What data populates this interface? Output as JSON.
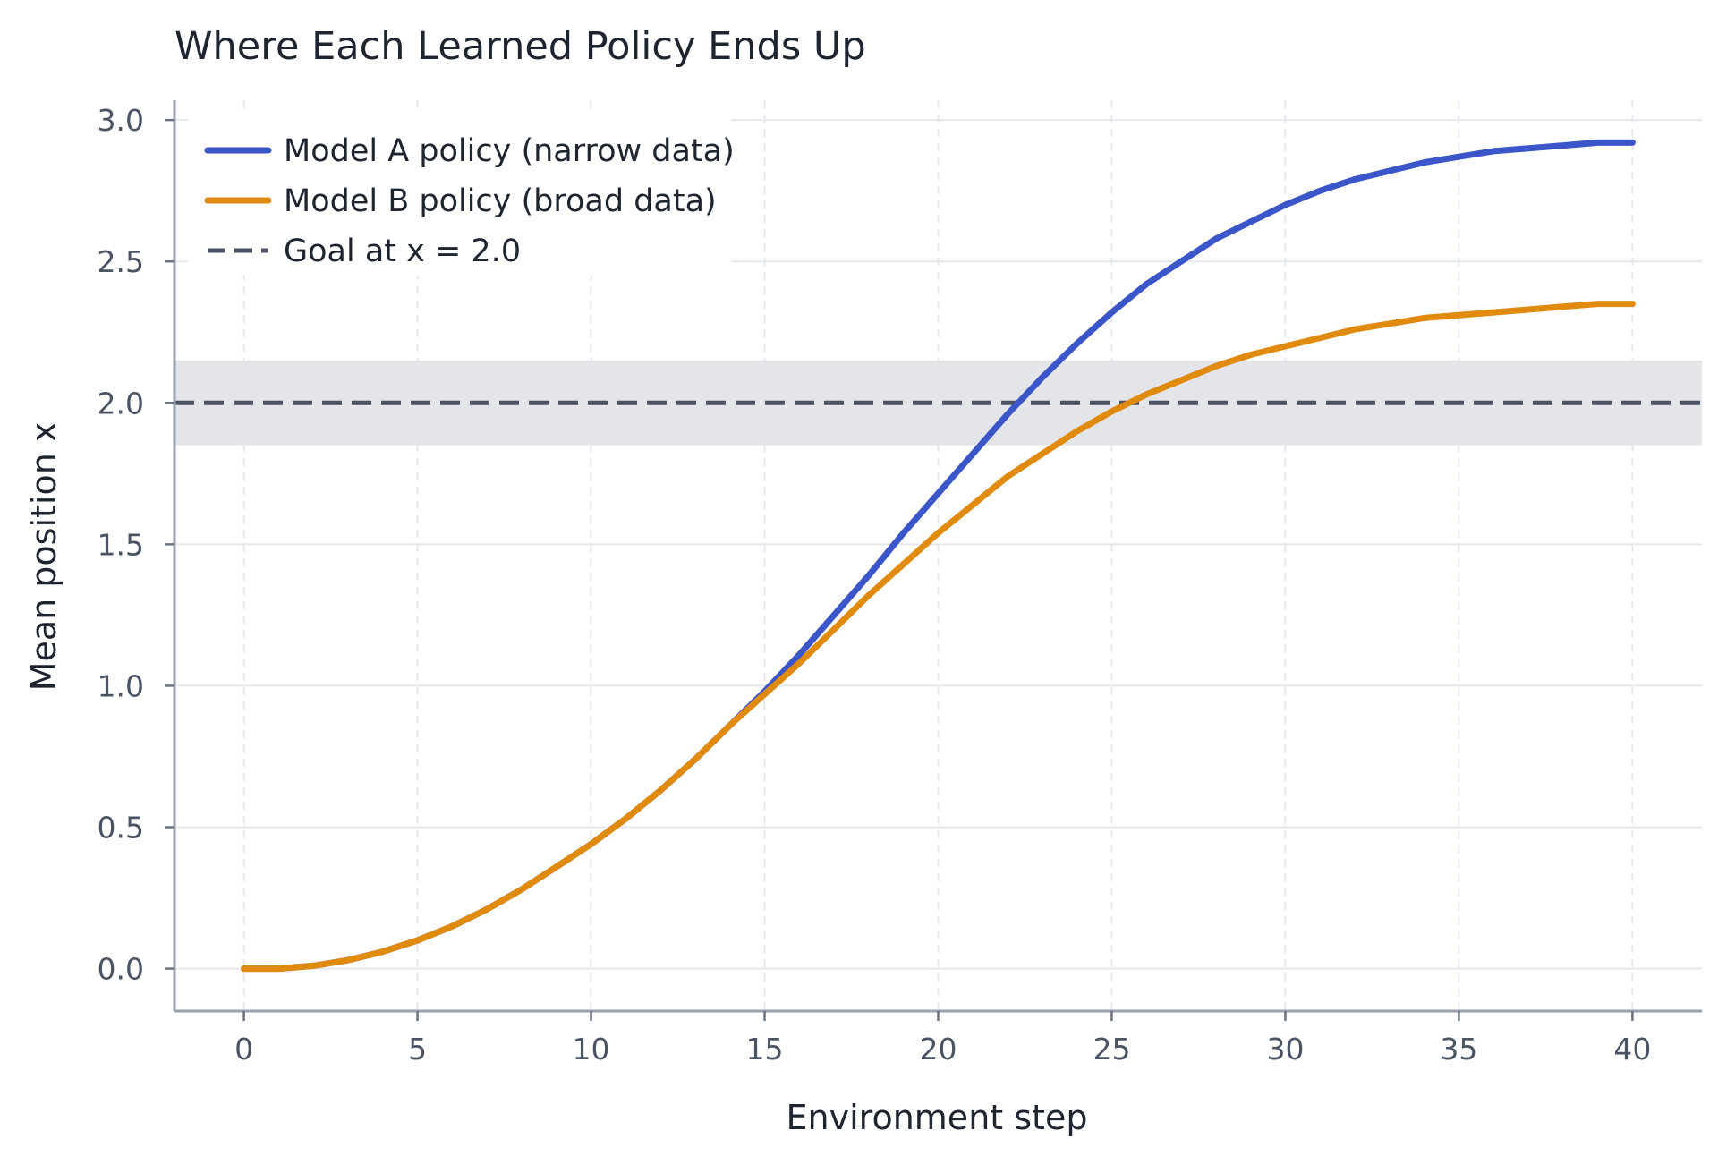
{
  "chart_data": {
    "type": "line",
    "title": "Where Each Learned Policy Ends Up",
    "xlabel": "Environment step",
    "ylabel": "Mean position x",
    "xlim": [
      -2,
      42
    ],
    "ylim": [
      -0.15,
      3.07
    ],
    "xticks": [
      0,
      5,
      10,
      15,
      20,
      25,
      30,
      35,
      40
    ],
    "xtick_labels": [
      "0",
      "5",
      "10",
      "15",
      "20",
      "25",
      "30",
      "35",
      "40"
    ],
    "yticks": [
      0.0,
      0.5,
      1.0,
      1.5,
      2.0,
      2.5,
      3.0
    ],
    "ytick_labels": [
      "0.0",
      "0.5",
      "1.0",
      "1.5",
      "2.0",
      "2.5",
      "3.0"
    ],
    "grid": true,
    "legend_position": "top-left",
    "goal": {
      "label": "Goal at x = 2.0",
      "value": 2.0,
      "band": [
        1.85,
        2.15
      ],
      "color": "#4a5262",
      "band_color": "#e3e5e8"
    },
    "x": [
      0,
      1,
      2,
      3,
      4,
      5,
      6,
      7,
      8,
      9,
      10,
      11,
      12,
      13,
      14,
      15,
      16,
      17,
      18,
      19,
      20,
      21,
      22,
      23,
      24,
      25,
      26,
      27,
      28,
      29,
      30,
      31,
      32,
      33,
      34,
      35,
      36,
      37,
      38,
      39,
      40
    ],
    "series": [
      {
        "name": "Model A policy (narrow data)",
        "color": "#3a56c8",
        "values": [
          0.0,
          0.0,
          0.01,
          0.03,
          0.06,
          0.1,
          0.15,
          0.21,
          0.28,
          0.36,
          0.44,
          0.53,
          0.63,
          0.74,
          0.86,
          0.98,
          1.11,
          1.25,
          1.39,
          1.54,
          1.68,
          1.82,
          1.96,
          2.09,
          2.21,
          2.32,
          2.42,
          2.5,
          2.58,
          2.64,
          2.7,
          2.75,
          2.79,
          2.82,
          2.85,
          2.87,
          2.89,
          2.9,
          2.91,
          2.92,
          2.92
        ]
      },
      {
        "name": "Model B policy (broad data)",
        "color": "#e08a0e",
        "values": [
          0.0,
          0.0,
          0.01,
          0.03,
          0.06,
          0.1,
          0.15,
          0.21,
          0.28,
          0.36,
          0.44,
          0.53,
          0.63,
          0.74,
          0.86,
          0.97,
          1.08,
          1.2,
          1.32,
          1.43,
          1.54,
          1.64,
          1.74,
          1.82,
          1.9,
          1.97,
          2.03,
          2.08,
          2.13,
          2.17,
          2.2,
          2.23,
          2.26,
          2.28,
          2.3,
          2.31,
          2.32,
          2.33,
          2.34,
          2.35,
          2.35
        ]
      }
    ]
  }
}
